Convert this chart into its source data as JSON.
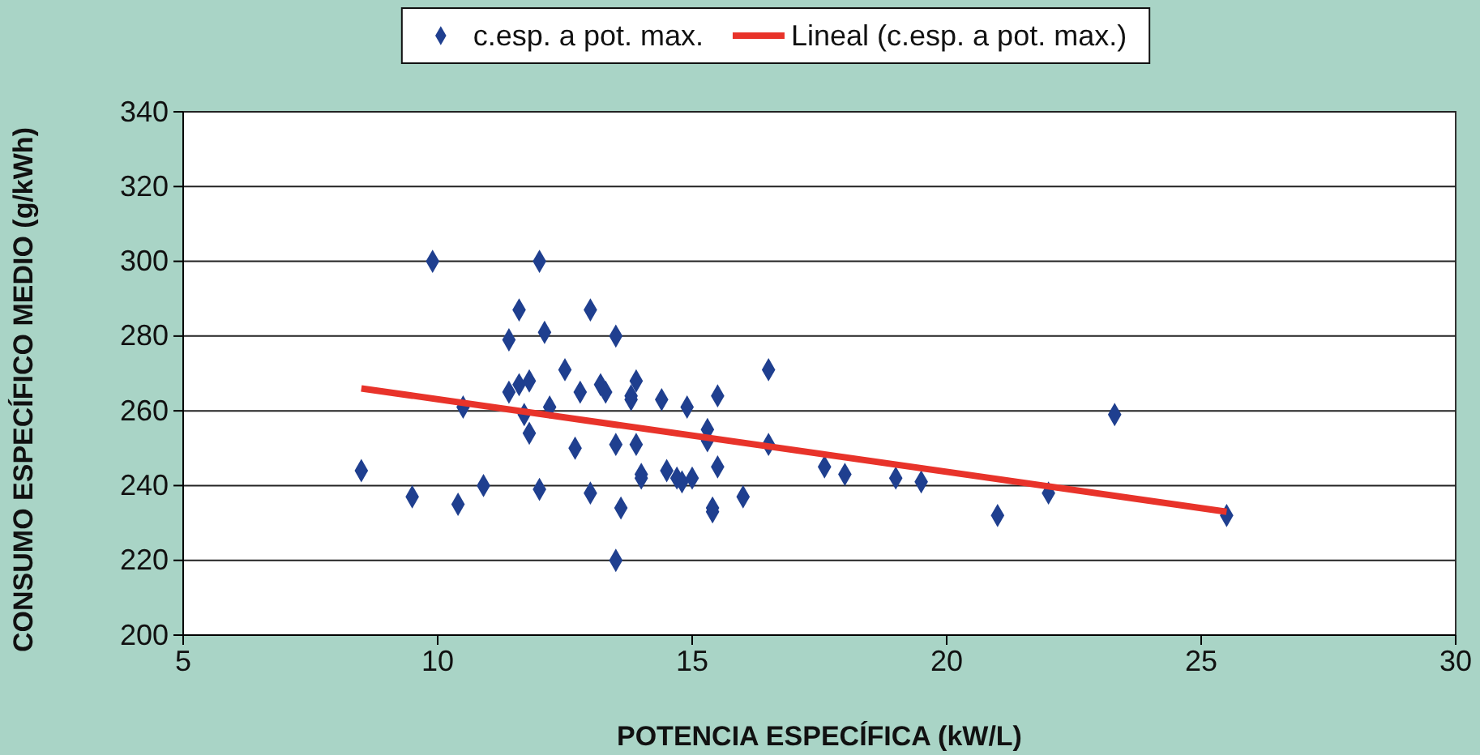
{
  "chart_data": {
    "type": "scatter",
    "xlabel": "POTENCIA ESPECÍFICA (kW/L)",
    "ylabel": "CONSUMO ESPECÍFICO MEDIO (g/kWh)",
    "xlim": [
      5,
      30
    ],
    "xticks": [
      5,
      10,
      15,
      20,
      25,
      30
    ],
    "ylim": [
      200,
      340
    ],
    "yticks": [
      200,
      220,
      240,
      260,
      280,
      300,
      320,
      340
    ],
    "grid": "y",
    "legend": "top",
    "marker": "diamond",
    "series": [
      {
        "name": "c.esp. a pot. max.",
        "color": "#1f3f8f",
        "x": [
          8.5,
          9.5,
          9.9,
          10.4,
          10.5,
          10.9,
          11.4,
          11.4,
          11.6,
          11.6,
          11.7,
          11.8,
          11.8,
          12.0,
          12.0,
          12.1,
          12.2,
          12.5,
          12.7,
          12.8,
          13.0,
          13.0,
          13.2,
          13.3,
          13.5,
          13.5,
          13.5,
          13.6,
          13.8,
          13.8,
          13.9,
          13.9,
          14.0,
          14.0,
          14.4,
          14.5,
          14.7,
          14.8,
          14.9,
          15.0,
          15.3,
          15.3,
          15.4,
          15.4,
          15.5,
          15.5,
          16.0,
          16.5,
          16.5,
          17.6,
          18.0,
          19.0,
          19.5,
          21.0,
          22.0,
          23.3,
          25.5
        ],
        "values": [
          244,
          237,
          300,
          235,
          261,
          240,
          279,
          265,
          287,
          267,
          259,
          268,
          254,
          300,
          239,
          281,
          261,
          271,
          250,
          265,
          287,
          238,
          267,
          265,
          280,
          251,
          220,
          234,
          263,
          264,
          268,
          251,
          243,
          242,
          263,
          244,
          242,
          241,
          261,
          242,
          255,
          252,
          233,
          234,
          264,
          245,
          237,
          271,
          251,
          245,
          243,
          242,
          241,
          232,
          238,
          259,
          232
        ]
      },
      {
        "name": "Lineal (c.esp. a pot. max.)",
        "type": "line",
        "color": "#e8332a",
        "line_style": "solid",
        "marker": "none",
        "x": [
          8.5,
          25.5
        ],
        "values": [
          266,
          233
        ]
      }
    ]
  }
}
